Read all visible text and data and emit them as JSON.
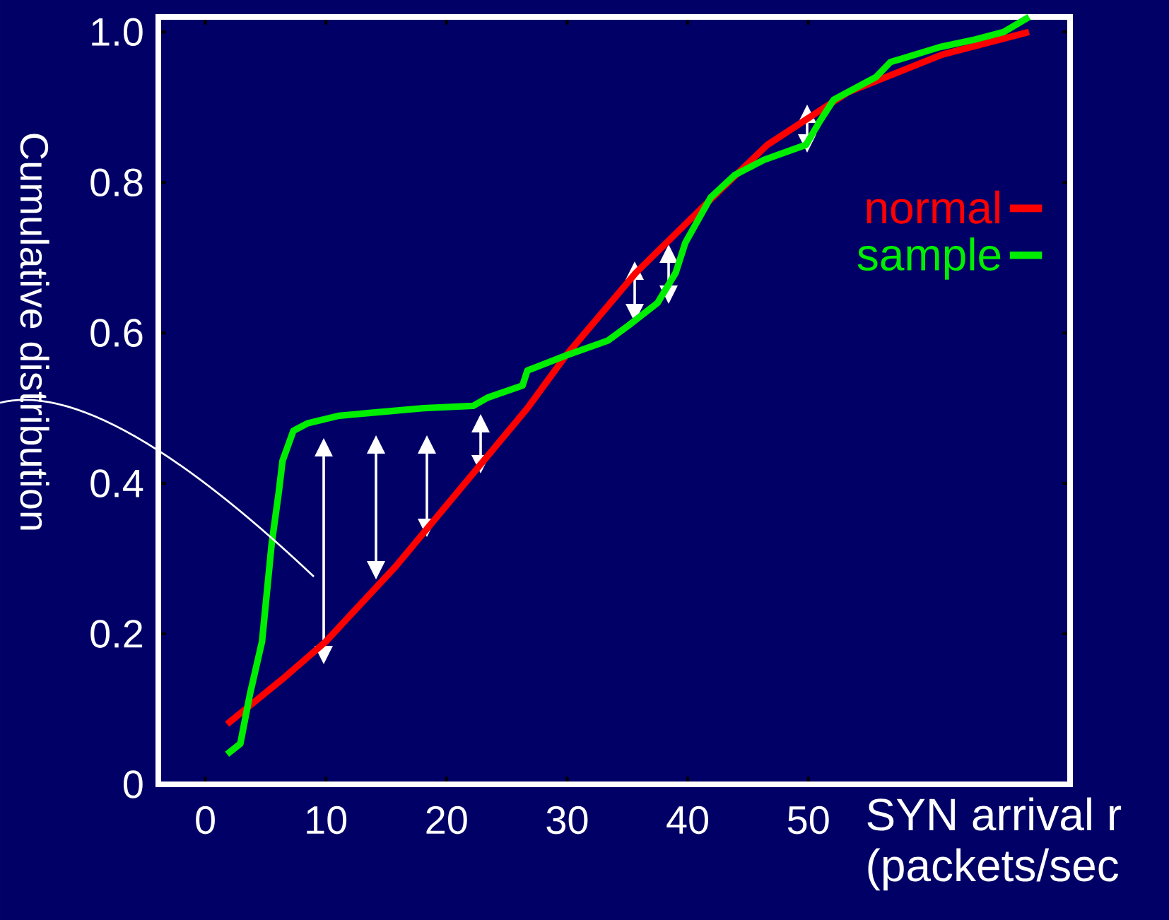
{
  "chart_data": {
    "type": "line",
    "xlabel": "SYN arrival r (packets/sec",
    "ylabel": "Cumulative distribution",
    "xlim": [
      -3.9,
      71.7
    ],
    "ylim": [
      0,
      1.02
    ],
    "xticks": [
      0,
      10,
      20,
      30,
      40,
      50
    ],
    "yticks": [
      0,
      {
        "value": 0.2,
        "label": "0.2"
      },
      {
        "value": 0.4,
        "label": "0.4"
      },
      {
        "value": 0.6,
        "label": "0.6"
      },
      {
        "value": 0.8,
        "label": "0.8"
      },
      {
        "value": 1,
        "label": "1.0"
      }
    ],
    "legend": "right",
    "grid": false,
    "series": [
      {
        "name": "normal",
        "color": "#ff0000",
        "x": [
          1.8,
          6.4,
          10.0,
          15.8,
          26.7,
          29.9,
          35.7,
          42.7,
          46.6,
          53.3,
          61.1,
          68.3
        ],
        "values": [
          0.08,
          0.14,
          0.19,
          0.29,
          0.5,
          0.57,
          0.68,
          0.79,
          0.85,
          0.92,
          0.97,
          1.0
        ]
      },
      {
        "name": "sample",
        "color": "#00ee00",
        "x": [
          1.8,
          2.9,
          3.7,
          4.7,
          5.5,
          6.1,
          6.4,
          7.3,
          8.5,
          11.1,
          18.1,
          22.2,
          23.4,
          26.3,
          26.7,
          29.9,
          33.4,
          35.1,
          37.5,
          39.0,
          39.8,
          41.9,
          43.9,
          46.3,
          49.8,
          50.9,
          52.1,
          55.6,
          56.8,
          60.9,
          63.8,
          66.2,
          68.3
        ],
        "values": [
          0.04,
          0.054,
          0.12,
          0.19,
          0.32,
          0.39,
          0.43,
          0.47,
          0.48,
          0.49,
          0.5,
          0.503,
          0.514,
          0.53,
          0.55,
          0.57,
          0.59,
          0.61,
          0.64,
          0.68,
          0.72,
          0.78,
          0.81,
          0.83,
          0.85,
          0.88,
          0.91,
          0.94,
          0.96,
          0.98,
          0.99,
          1.0,
          1.02
        ]
      }
    ]
  }
}
